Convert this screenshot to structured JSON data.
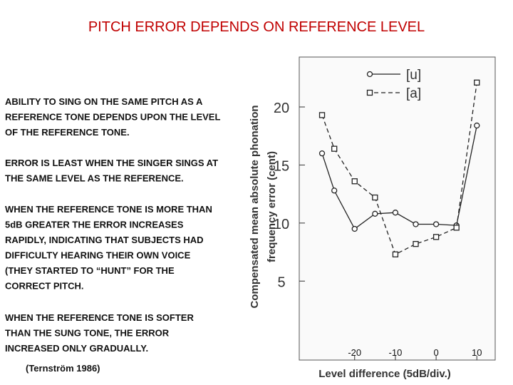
{
  "title": "PITCH ERROR DEPENDS ON REFERENCE LEVEL",
  "paragraphs": [
    [
      "ABILITY TO SING ON THE SAME PITCH AS A",
      "REFERENCE TONE DEPENDS UPON THE LEVEL",
      "OF THE REFERENCE TONE."
    ],
    [
      "ERROR IS LEAST WHEN THE SINGER SINGS AT",
      "THE SAME LEVEL AS THE REFERENCE."
    ],
    [
      "WHEN THE REFERENCE TONE IS MORE THAN",
      "5dB GREATER THE ERROR INCREASES",
      "RAPIDLY, INDICATING THAT SUBJECTS HAD",
      "DIFFICULTY HEARING THEIR OWN VOICE",
      "(THEY STARTED TO “HUNT” FOR THE",
      "CORRECT PITCH."
    ],
    [
      "WHEN THE REFERENCE TONE IS SOFTER",
      "THAN THE SUNG TONE, THE ERROR",
      "INCREASED ONLY GRADUALLY."
    ]
  ],
  "citation": "(Ternström 1986)",
  "chart_data": {
    "type": "line",
    "xlabel": "Level difference (5dB/div.)",
    "ylabel": [
      "Compensated mean absolute phonation",
      "frequency error (cent)"
    ],
    "x": [
      -28,
      -25,
      -20,
      -15,
      -10,
      -5,
      0,
      5,
      10
    ],
    "series": [
      {
        "name": "[u]",
        "color": "#222222",
        "marker": "circle",
        "dash": false,
        "values": [
          16.0,
          12.8,
          9.5,
          10.8,
          10.9,
          9.9,
          9.9,
          9.8,
          18.4
        ]
      },
      {
        "name": "[a]",
        "color": "#222222",
        "marker": "square",
        "dash": true,
        "values": [
          19.3,
          16.4,
          13.6,
          12.2,
          7.3,
          8.2,
          8.8,
          9.6,
          22.1
        ]
      }
    ],
    "xlim": [
      -33.6,
      14.5
    ],
    "ylim": [
      -1.8,
      24.3
    ],
    "xticks": [
      -20,
      -10,
      0,
      10
    ],
    "yticks": [
      5,
      10,
      15,
      20
    ],
    "grid": false
  }
}
